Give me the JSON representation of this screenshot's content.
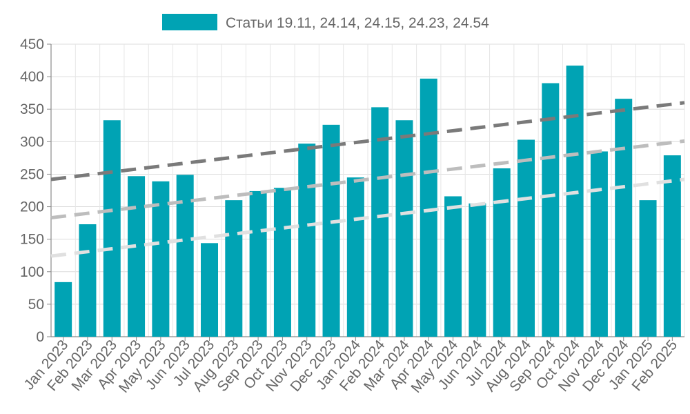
{
  "chart_data": {
    "type": "bar",
    "categories": [
      "Jan 2023",
      "Feb 2023",
      "Mar 2023",
      "Apr 2023",
      "May 2023",
      "Jun 2023",
      "Jul 2023",
      "Aug 2023",
      "Sep 2023",
      "Oct 2023",
      "Nov 2023",
      "Dec 2023",
      "Jan 2024",
      "Feb 2024",
      "Mar 2024",
      "Apr 2024",
      "May 2024",
      "Jun 2024",
      "Jul 2024",
      "Aug 2024",
      "Sep 2024",
      "Oct 2024",
      "Nov 2024",
      "Dec 2024",
      "Jan 2025",
      "Feb 2025"
    ],
    "series": [
      {
        "name": "Статьи 19.11, 24.14, 24.15, 24.23, 24.54",
        "color": "#00a3b4",
        "values": [
          84,
          173,
          333,
          247,
          239,
          249,
          144,
          210,
          224,
          229,
          297,
          326,
          245,
          353,
          333,
          397,
          216,
          205,
          259,
          303,
          390,
          417,
          285,
          366,
          210,
          279
        ]
      }
    ],
    "trendlines": [
      {
        "start": 242,
        "end": 360,
        "color": "#7a7a7a"
      },
      {
        "start": 183,
        "end": 301,
        "color": "#bdbdbd"
      },
      {
        "start": 124,
        "end": 242,
        "color": "#e0e0e0"
      }
    ],
    "title": "",
    "xlabel": "",
    "ylabel": "",
    "ylim": [
      0,
      450
    ],
    "yticks": [
      "0",
      "50",
      "100",
      "150",
      "200",
      "250",
      "300",
      "350",
      "400",
      "450"
    ],
    "grid": true,
    "legend_position": "top-center"
  }
}
